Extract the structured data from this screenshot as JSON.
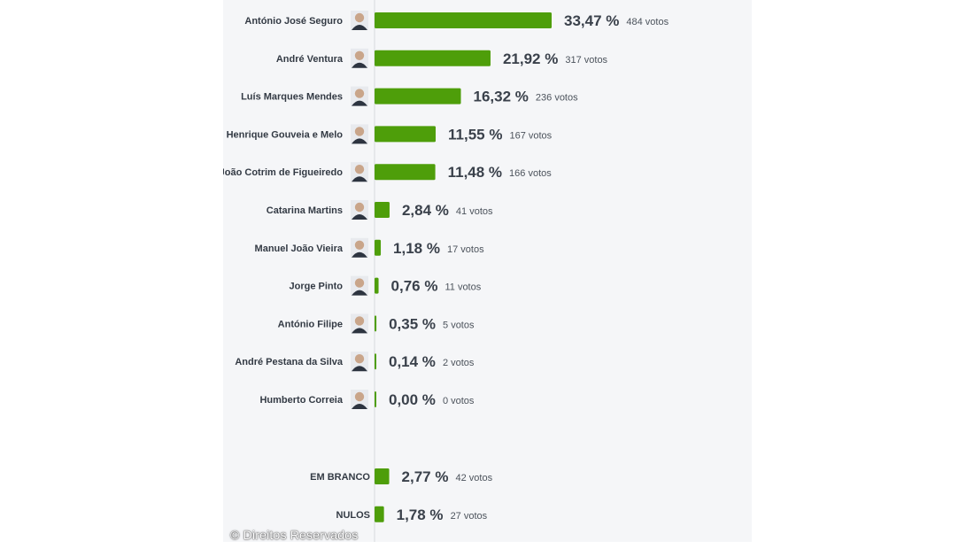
{
  "chart_data": {
    "type": "bar",
    "orientation": "horizontal",
    "colors": {
      "bar": "#4e9e0a",
      "background": "#f5f6f8",
      "axis": "#d6d9de"
    },
    "pct_max": 33.47,
    "rows": [
      {
        "name": "António José Seguro",
        "pct": 33.47,
        "pct_label": "33,47 %",
        "votes_label": "484 votos",
        "group": "candidate"
      },
      {
        "name": "André Ventura",
        "pct": 21.92,
        "pct_label": "21,92 %",
        "votes_label": "317 votos",
        "group": "candidate"
      },
      {
        "name": "Luís Marques Mendes",
        "pct": 16.32,
        "pct_label": "16,32 %",
        "votes_label": "236 votos",
        "group": "candidate"
      },
      {
        "name": "Henrique Gouveia e Melo",
        "pct": 11.55,
        "pct_label": "11,55 %",
        "votes_label": "167 votos",
        "group": "candidate"
      },
      {
        "name": "João Cotrim de Figueiredo",
        "pct": 11.48,
        "pct_label": "11,48 %",
        "votes_label": "166 votos",
        "group": "candidate"
      },
      {
        "name": "Catarina Martins",
        "pct": 2.84,
        "pct_label": "2,84 %",
        "votes_label": "41 votos",
        "group": "candidate"
      },
      {
        "name": "Manuel João Vieira",
        "pct": 1.18,
        "pct_label": "1,18 %",
        "votes_label": "17 votos",
        "group": "candidate"
      },
      {
        "name": "Jorge Pinto",
        "pct": 0.76,
        "pct_label": "0,76 %",
        "votes_label": "11 votos",
        "group": "candidate"
      },
      {
        "name": "António Filipe",
        "pct": 0.35,
        "pct_label": "0,35 %",
        "votes_label": "5 votos",
        "group": "candidate"
      },
      {
        "name": "André Pestana da Silva",
        "pct": 0.14,
        "pct_label": "0,14 %",
        "votes_label": "2 votos",
        "group": "candidate"
      },
      {
        "name": "Humberto Correia",
        "pct": 0.0,
        "pct_label": "0,00 %",
        "votes_label": "0 votos",
        "group": "candidate"
      },
      {
        "name": "EM BRANCO",
        "pct": 2.77,
        "pct_label": "2,77 %",
        "votes_label": "42 votos",
        "group": "other"
      },
      {
        "name": "NULOS",
        "pct": 1.78,
        "pct_label": "1,78 %",
        "votes_label": "27 votos",
        "group": "other"
      }
    ]
  },
  "credit": "© Direitos Reservados"
}
